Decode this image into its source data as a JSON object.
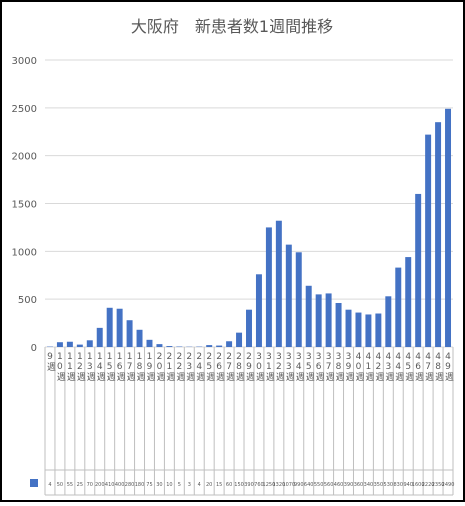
{
  "chart_data": {
    "type": "bar",
    "title": "大阪府　新患者数1週間推移",
    "categories": [
      "9週",
      "10週",
      "11週",
      "12週",
      "13週",
      "14週",
      "15週",
      "16週",
      "17週",
      "18週",
      "19週",
      "20週",
      "21週",
      "22週",
      "23週",
      "24週",
      "25週",
      "26週",
      "27週",
      "28週",
      "29週",
      "30週",
      "31週",
      "32週",
      "33週",
      "34週",
      "35週",
      "36週",
      "37週",
      "38週",
      "39週",
      "40週",
      "41週",
      "42週",
      "43週",
      "44週",
      "45週",
      "46週",
      "47週",
      "48週",
      "49週"
    ],
    "values": [
      4,
      50,
      55,
      25,
      70,
      200,
      410,
      400,
      280,
      180,
      75,
      30,
      10,
      5,
      3,
      4,
      20,
      15,
      60,
      150,
      390,
      760,
      1250,
      1320,
      1070,
      990,
      640,
      550,
      560,
      460,
      390,
      360,
      340,
      350,
      530,
      830,
      940,
      1600,
      2220,
      2350,
      2490
    ],
    "color": "#4472c4",
    "ylim": [
      0,
      3000
    ],
    "yticks": [
      0,
      500,
      1000,
      1500,
      2000,
      2500,
      3000
    ],
    "grid": true
  }
}
